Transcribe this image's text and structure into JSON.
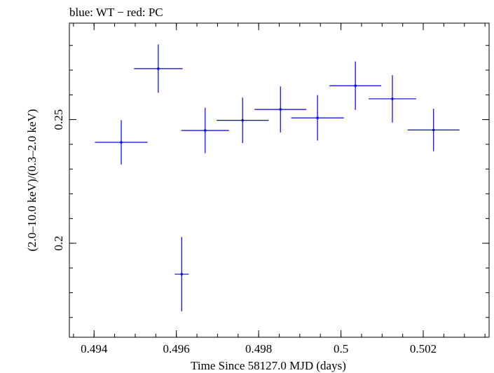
{
  "chart_data": {
    "type": "scatter",
    "title": "blue: WT − red: PC",
    "xlabel": "Time Since 58127.0 MJD (days)",
    "ylabel": "(2.0–10.0 keV)/(0.3–2.0 keV)",
    "xlim": [
      0.4934,
      0.5036
    ],
    "ylim": [
      0.162,
      0.289
    ],
    "x_ticks": [
      {
        "value": 0.494,
        "label": "0.494"
      },
      {
        "value": 0.496,
        "label": "0.496"
      },
      {
        "value": 0.498,
        "label": "0.498"
      },
      {
        "value": 0.5,
        "label": "0.5"
      },
      {
        "value": 0.502,
        "label": "0.502"
      }
    ],
    "x_minor_step": 0.0005,
    "y_ticks": [
      {
        "value": 0.2,
        "label": "0.2"
      },
      {
        "value": 0.25,
        "label": "0.25"
      }
    ],
    "y_minor_step": 0.01,
    "grid": false,
    "series": [
      {
        "color": "#0000ee",
        "points": [
          {
            "x": 0.49466,
            "y": 0.2408,
            "xerr": 0.00064,
            "yerr": 0.009
          },
          {
            "x": 0.49556,
            "y": 0.2706,
            "xerr": 0.00059,
            "yerr": 0.0098
          },
          {
            "x": 0.49613,
            "y": 0.1875,
            "xerr": 0.00017,
            "yerr": 0.015
          },
          {
            "x": 0.4967,
            "y": 0.2456,
            "xerr": 0.00058,
            "yerr": 0.0092
          },
          {
            "x": 0.49761,
            "y": 0.2497,
            "xerr": 0.00063,
            "yerr": 0.0092
          },
          {
            "x": 0.49853,
            "y": 0.2541,
            "xerr": 0.00063,
            "yerr": 0.0093
          },
          {
            "x": 0.49943,
            "y": 0.2507,
            "xerr": 0.00064,
            "yerr": 0.0092
          },
          {
            "x": 0.50035,
            "y": 0.2637,
            "xerr": 0.00063,
            "yerr": 0.0098
          },
          {
            "x": 0.50125,
            "y": 0.2584,
            "xerr": 0.00058,
            "yerr": 0.0096
          },
          {
            "x": 0.50225,
            "y": 0.2458,
            "xerr": 0.00063,
            "yerr": 0.0086
          }
        ]
      }
    ]
  }
}
